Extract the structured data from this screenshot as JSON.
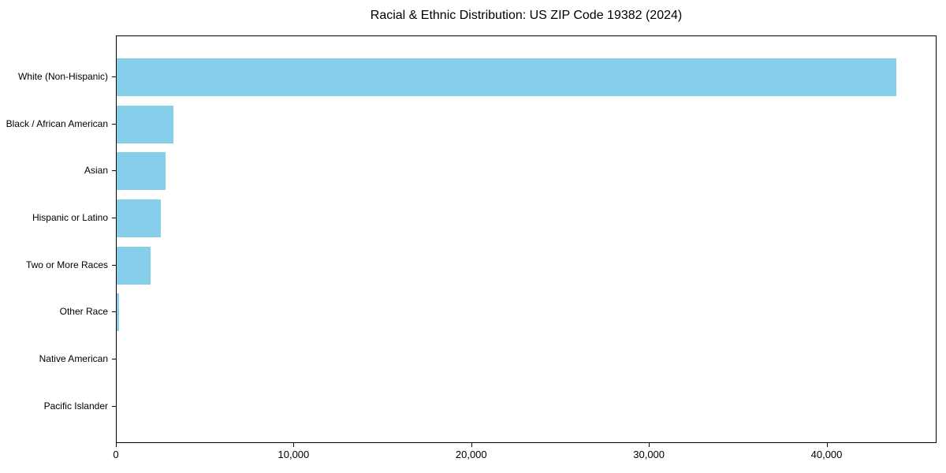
{
  "title": "Racial & Ethnic Distribution: US ZIP Code 19382 (2024)",
  "colors": {
    "bar": "#87ceeb",
    "axis": "#000000",
    "text": "#000000",
    "background": "#ffffff"
  },
  "chart_data": {
    "type": "bar",
    "orientation": "horizontal",
    "title": "Racial & Ethnic Distribution: US ZIP Code 19382 (2024)",
    "categories": [
      "White (Non-Hispanic)",
      "Black / African American",
      "Asian",
      "Hispanic or Latino",
      "Two or More Races",
      "Other Race",
      "Native American",
      "Pacific Islander"
    ],
    "values": [
      43900,
      3200,
      2750,
      2500,
      1900,
      120,
      0,
      0
    ],
    "xlabel": "",
    "ylabel": "",
    "xlim": [
      0,
      46100
    ],
    "x_ticks": [
      0,
      10000,
      20000,
      30000,
      40000
    ],
    "x_tick_labels": [
      "0",
      "10,000",
      "20,000",
      "30,000",
      "40,000"
    ],
    "bar_color": "#87ceeb",
    "grid": false,
    "legend": "none"
  }
}
